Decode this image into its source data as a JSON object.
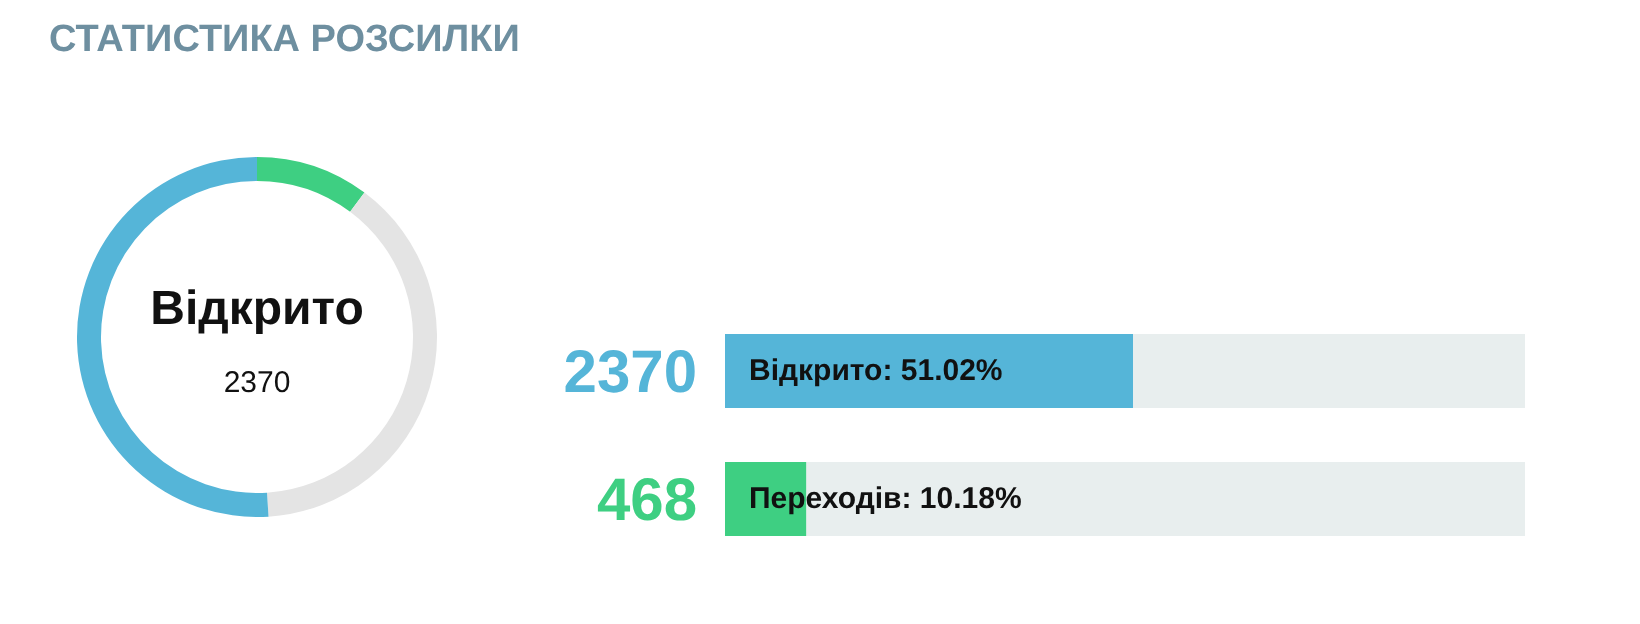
{
  "chart_data": [
    {
      "type": "donut",
      "title": "СТАТИСТИКА РОЗСИЛКИ",
      "categories": [
        null,
        null,
        null
      ],
      "values": [
        10.18,
        38.8,
        51.02
      ],
      "colors": [
        "#3ecf82",
        "#e4e4e4",
        "#55b5d8"
      ],
      "annotations": [
        "Відкрито",
        "2370"
      ]
    },
    {
      "type": "bar",
      "orientation": "horizontal",
      "stacked": true,
      "categories": [
        "2370",
        "468"
      ],
      "xlim": [
        0,
        100
      ],
      "tick_labels": false,
      "series": [
        {
          "colors": [
            "#55b5d8",
            "#3ecf82"
          ],
          "values": [
            51.02,
            10.18
          ],
          "value_labels": [
            "Відкрито: 51.02%",
            "Переходів: 10.18%"
          ]
        },
        {
          "color": "#e8eeee",
          "values": [
            48.98,
            89.82
          ]
        }
      ]
    }
  ]
}
